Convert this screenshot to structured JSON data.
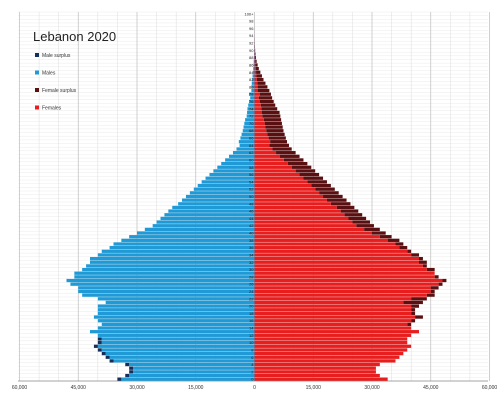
{
  "chart_data": {
    "type": "bar",
    "orientation": "horizontal-pyramid",
    "title": "Lebanon 2020",
    "legend": [
      {
        "label": "Male surplus",
        "color": "#14305a"
      },
      {
        "label": "Males",
        "color": "#1f9ad6"
      },
      {
        "label": "Female surplus",
        "color": "#5a0f10"
      },
      {
        "label": "Females",
        "color": "#e81d1d"
      }
    ],
    "legend_position": "top-left",
    "grid": true,
    "xlim": [
      -60000,
      60000
    ],
    "x_tick_labels": [
      "60,000",
      "45,000",
      "30,000",
      "15,000",
      "0",
      "15,000",
      "30,000",
      "45,000",
      "60,000"
    ],
    "age_range": [
      0,
      100
    ],
    "age_tick_labels": [
      "100+",
      "98",
      "96",
      "94",
      "92",
      "90",
      "88",
      "86",
      "84",
      "82",
      "80",
      "78",
      "76",
      "74",
      "72",
      "70",
      "68",
      "66",
      "64",
      "62",
      "60",
      "58",
      "56",
      "54",
      "52",
      "50",
      "48",
      "46",
      "44",
      "42",
      "40",
      "38",
      "36",
      "34",
      "32",
      "30",
      "28",
      "26",
      "24",
      "22",
      "20",
      "18",
      "16",
      "14",
      "12",
      "10",
      "8",
      "6",
      "4",
      "2",
      "0"
    ],
    "series": [
      {
        "name": "Males",
        "values": [
          35000,
          33000,
          32000,
          32000,
          33000,
          37000,
          38000,
          39000,
          40000,
          41000,
          40000,
          40000,
          40000,
          42000,
          40000,
          39000,
          40000,
          41000,
          40000,
          40000,
          40000,
          38000,
          40000,
          44000,
          45000,
          45000,
          47000,
          48000,
          46000,
          46000,
          44000,
          43000,
          42000,
          42000,
          40000,
          39000,
          37000,
          36000,
          34000,
          32000,
          30000,
          28000,
          26000,
          25000,
          24000,
          23000,
          22000,
          21000,
          19500,
          18500,
          17500,
          16500,
          15500,
          14500,
          13500,
          12500,
          11500,
          10500,
          9500,
          8500,
          7500,
          6500,
          5500,
          4600,
          3800,
          4000,
          3600,
          3300,
          3000,
          2800,
          2600,
          2400,
          2000,
          1900,
          1800,
          1600,
          1400,
          1100,
          1400,
          800,
          800,
          700,
          600,
          500,
          400,
          330,
          260,
          200,
          150,
          110,
          80,
          55,
          40,
          28,
          18,
          12,
          8,
          5,
          3,
          2,
          2
        ]
      },
      {
        "name": "Females",
        "values": [
          34000,
          32000,
          31000,
          31000,
          32000,
          36000,
          37000,
          38000,
          39000,
          40000,
          39000,
          39000,
          40000,
          42000,
          40000,
          40000,
          41000,
          43000,
          41000,
          41000,
          42000,
          43000,
          44000,
          46000,
          46000,
          47000,
          48000,
          49000,
          47000,
          46000,
          46000,
          44000,
          44000,
          43000,
          42000,
          40000,
          39000,
          38000,
          37000,
          35000,
          33500,
          32000,
          30500,
          29500,
          28500,
          27500,
          26500,
          25500,
          24500,
          23500,
          22500,
          21500,
          20500,
          19500,
          18500,
          17500,
          16500,
          15500,
          14500,
          13500,
          12500,
          11500,
          10500,
          9500,
          8800,
          8300,
          8000,
          7700,
          7400,
          7200,
          7000,
          6800,
          6600,
          6400,
          5800,
          5300,
          4900,
          4500,
          4200,
          3800,
          3300,
          2800,
          2300,
          1900,
          1500,
          1100,
          800,
          550,
          380,
          260,
          170,
          110,
          70,
          45,
          28,
          18,
          11,
          7,
          4,
          3,
          3
        ]
      }
    ]
  }
}
